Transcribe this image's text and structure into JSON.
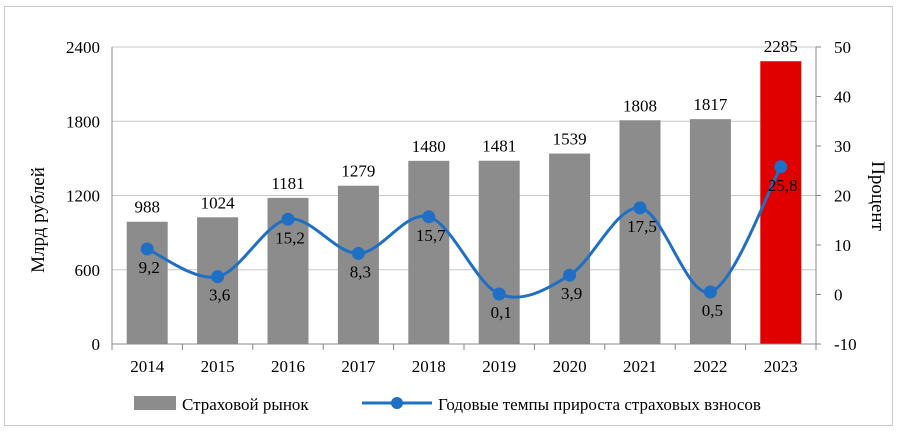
{
  "chart_data": {
    "type": "bar",
    "categories": [
      "2014",
      "2015",
      "2016",
      "2017",
      "2018",
      "2019",
      "2020",
      "2021",
      "2022",
      "2023"
    ],
    "series": [
      {
        "name": "Страховой рынок",
        "type": "bar",
        "axis": "left",
        "values": [
          988,
          1024,
          1181,
          1279,
          1480,
          1481,
          1539,
          1808,
          1817,
          2285
        ],
        "labels": [
          "988",
          "1024",
          "1181",
          "1279",
          "1480",
          "1481",
          "1539",
          "1808",
          "1817",
          "2285"
        ],
        "color": "#8c8c8c",
        "highlight_color": "#e00000",
        "highlight_index": 9
      },
      {
        "name": "Годовые темпы прироста страховых взносов",
        "type": "line",
        "axis": "right",
        "values": [
          9.2,
          3.6,
          15.2,
          8.3,
          15.7,
          0.1,
          3.9,
          17.5,
          0.5,
          25.8
        ],
        "labels": [
          "9,2",
          "3,6",
          "15,2",
          "8,3",
          "15,7",
          "0,1",
          "3,9",
          "17,5",
          "0,5",
          "25,8"
        ],
        "color": "#1f6fc5"
      }
    ],
    "y_left": {
      "label": "Млрд  рублей",
      "min": 0,
      "max": 2400,
      "ticks": [
        "0",
        "600",
        "1200",
        "1800",
        "2400"
      ],
      "tick_values": [
        0,
        600,
        1200,
        1800,
        2400
      ]
    },
    "y_right": {
      "label": "Процент",
      "min": -10,
      "max": 50,
      "ticks": [
        "-10",
        "0",
        "10",
        "20",
        "30",
        "40",
        "50"
      ],
      "tick_values": [
        -10,
        0,
        10,
        20,
        30,
        40,
        50
      ]
    },
    "grid": true,
    "legend_position": "bottom"
  }
}
